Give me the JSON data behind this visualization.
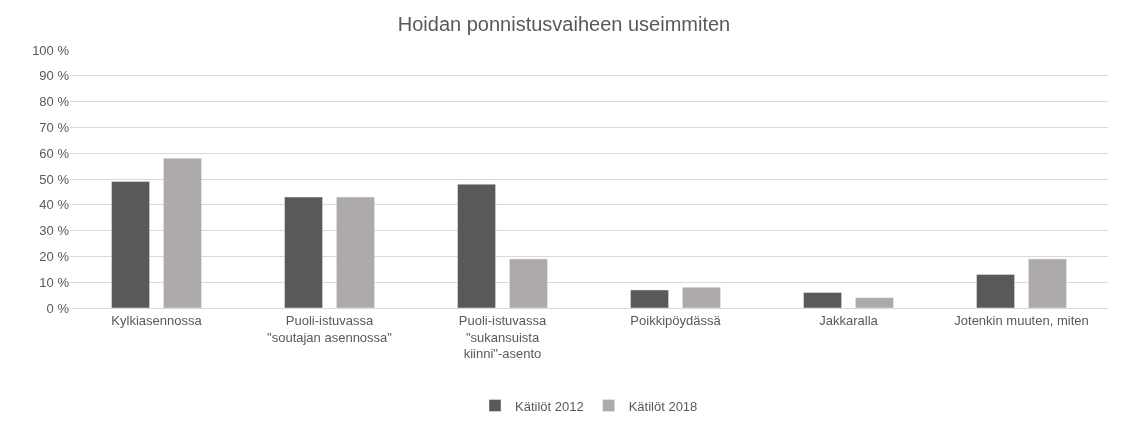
{
  "chart_data": {
    "type": "bar",
    "title": "Hoidan ponnistusvaiheen useimmiten",
    "categories": [
      "Kylkiasennossa",
      "Puoli-istuvassa \"soutajan asennossa\"",
      "Puoli-istuvassa \"sukansuista kiinni\"-asento",
      "Poikkipöydässä",
      "Jakkaralla",
      "Jotenkin muuten, miten"
    ],
    "series": [
      {
        "name": "Kätilöt 2012",
        "color": "#595959",
        "values": [
          49,
          43,
          48,
          7,
          6,
          13
        ]
      },
      {
        "name": "Kätilöt 2018",
        "color": "#aeaaaa",
        "values": [
          58,
          43,
          19,
          8,
          4,
          19
        ]
      }
    ],
    "ylim": [
      0,
      100
    ],
    "yticks": [
      {
        "value": 0,
        "label": "0 %"
      },
      {
        "value": 10,
        "label": "10 %"
      },
      {
        "value": 20,
        "label": "20 %"
      },
      {
        "value": 30,
        "label": "30 %"
      },
      {
        "value": 40,
        "label": "40 %"
      },
      {
        "value": 50,
        "label": "50 %"
      },
      {
        "value": 60,
        "label": "60 %"
      },
      {
        "value": 70,
        "label": "70 %"
      },
      {
        "value": 80,
        "label": "80 %"
      },
      {
        "value": 90,
        "label": "90 %"
      },
      {
        "value": 100,
        "label": "100 %"
      }
    ],
    "grid": "y",
    "legend": "bottom"
  }
}
